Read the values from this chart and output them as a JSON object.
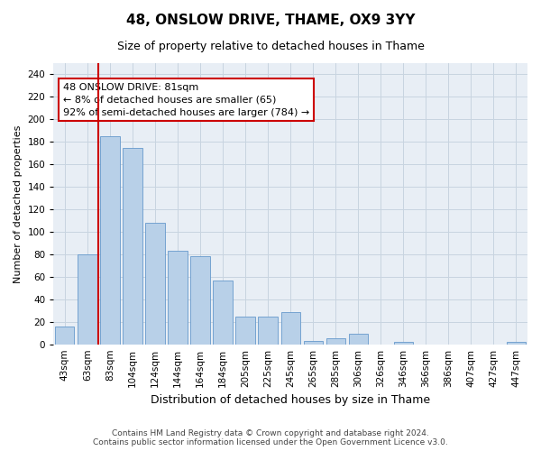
{
  "title": "48, ONSLOW DRIVE, THAME, OX9 3YY",
  "subtitle": "Size of property relative to detached houses in Thame",
  "xlabel": "Distribution of detached houses by size in Thame",
  "ylabel": "Number of detached properties",
  "categories": [
    "43sqm",
    "63sqm",
    "83sqm",
    "104sqm",
    "124sqm",
    "144sqm",
    "164sqm",
    "184sqm",
    "205sqm",
    "225sqm",
    "245sqm",
    "265sqm",
    "285sqm",
    "306sqm",
    "326sqm",
    "346sqm",
    "366sqm",
    "386sqm",
    "407sqm",
    "427sqm",
    "447sqm"
  ],
  "values": [
    16,
    80,
    185,
    175,
    108,
    83,
    78,
    57,
    25,
    25,
    29,
    3,
    5,
    9,
    0,
    2,
    0,
    0,
    0,
    0,
    2
  ],
  "bar_color": "#b8d0e8",
  "bar_edge_color": "#6699cc",
  "property_line_color": "#cc0000",
  "annotation_text": "48 ONSLOW DRIVE: 81sqm\n← 8% of detached houses are smaller (65)\n92% of semi-detached houses are larger (784) →",
  "annotation_box_color": "#ffffff",
  "annotation_box_edge_color": "#cc0000",
  "ylim": [
    0,
    250
  ],
  "yticks": [
    0,
    20,
    40,
    60,
    80,
    100,
    120,
    140,
    160,
    180,
    200,
    220,
    240
  ],
  "background_color": "#ffffff",
  "plot_bg_color": "#e8eef5",
  "grid_color": "#c8d4e0",
  "footer": "Contains HM Land Registry data © Crown copyright and database right 2024.\nContains public sector information licensed under the Open Government Licence v3.0.",
  "title_fontsize": 11,
  "subtitle_fontsize": 9,
  "ylabel_fontsize": 8,
  "xlabel_fontsize": 9,
  "footer_fontsize": 6.5,
  "tick_fontsize": 7.5,
  "annotation_fontsize": 8
}
